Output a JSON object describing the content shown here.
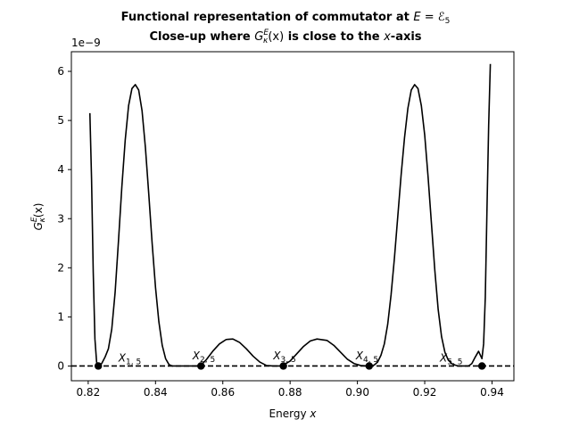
{
  "chart_data": {
    "type": "line",
    "title_line1": {
      "text": "Functional representation of commutator at ",
      "math_base": "E = ℰ",
      "math_sub": "5"
    },
    "title_line2": {
      "pre": "Close-up where ",
      "math_G": "G",
      "math_sub": "κ",
      "math_sup": "E",
      "math_arg": "(x)",
      "mid": " is close to the ",
      "math_x": "x",
      "post": "-axis"
    },
    "xlabel": {
      "text": "Energy ",
      "math": "x"
    },
    "ylabel": {
      "math_G": "G",
      "math_sub": "κ",
      "math_sup": "E",
      "math_arg": "(x)"
    },
    "y_offset_label": "1e−9",
    "xlim": [
      0.815,
      0.9465
    ],
    "ylim": [
      -0.3,
      6.4
    ],
    "y_scale": 1e-09,
    "xticks": [
      0.82,
      0.84,
      0.86,
      0.88,
      0.9,
      0.92,
      0.94
    ],
    "xtick_labels": [
      "0.82",
      "0.84",
      "0.86",
      "0.88",
      "0.90",
      "0.92",
      "0.94"
    ],
    "yticks": [
      0,
      1,
      2,
      3,
      4,
      5,
      6
    ],
    "ytick_labels": [
      "0",
      "1",
      "2",
      "3",
      "4",
      "5",
      "6"
    ],
    "grid": false,
    "series": [
      {
        "color": "#000000",
        "style": "solid",
        "x": [
          0.8205,
          0.821,
          0.8215,
          0.822,
          0.8225,
          0.823,
          0.824,
          0.825,
          0.826,
          0.827,
          0.828,
          0.829,
          0.83,
          0.831,
          0.832,
          0.833,
          0.834,
          0.835,
          0.836,
          0.837,
          0.838,
          0.839,
          0.84,
          0.841,
          0.842,
          0.843,
          0.844,
          0.845,
          0.846,
          0.847,
          0.848,
          0.849,
          0.85,
          0.851,
          0.852,
          0.853,
          0.854,
          0.855,
          0.857,
          0.859,
          0.861,
          0.863,
          0.865,
          0.867,
          0.869,
          0.871,
          0.873,
          0.875,
          0.877,
          0.878,
          0.88,
          0.882,
          0.884,
          0.886,
          0.888,
          0.891,
          0.893,
          0.895,
          0.897,
          0.899,
          0.901,
          0.903,
          0.904,
          0.905,
          0.906,
          0.907,
          0.908,
          0.909,
          0.91,
          0.911,
          0.912,
          0.913,
          0.914,
          0.915,
          0.916,
          0.917,
          0.918,
          0.919,
          0.92,
          0.921,
          0.922,
          0.923,
          0.924,
          0.925,
          0.926,
          0.927,
          0.928,
          0.929,
          0.93,
          0.931,
          0.932,
          0.933,
          0.934,
          0.935,
          0.936,
          0.937,
          0.9375,
          0.938,
          0.9385,
          0.939,
          0.9395
        ],
        "y": [
          5.15,
          3.8,
          1.9,
          0.55,
          0.08,
          0.0,
          0.05,
          0.18,
          0.35,
          0.75,
          1.5,
          2.55,
          3.65,
          4.6,
          5.3,
          5.65,
          5.73,
          5.62,
          5.2,
          4.45,
          3.5,
          2.5,
          1.6,
          0.9,
          0.42,
          0.15,
          0.03,
          0.0,
          0.0,
          0.0,
          0.0,
          0.0,
          0.0,
          0.0,
          0.0,
          0.0,
          0.05,
          0.12,
          0.3,
          0.45,
          0.54,
          0.55,
          0.48,
          0.35,
          0.2,
          0.08,
          0.01,
          0.0,
          0.0,
          0.02,
          0.1,
          0.25,
          0.4,
          0.51,
          0.55,
          0.52,
          0.42,
          0.28,
          0.14,
          0.05,
          0.01,
          0.0,
          0.0,
          0.02,
          0.08,
          0.22,
          0.45,
          0.85,
          1.45,
          2.2,
          3.05,
          3.9,
          4.65,
          5.25,
          5.62,
          5.73,
          5.65,
          5.3,
          4.7,
          3.85,
          2.9,
          1.95,
          1.15,
          0.6,
          0.28,
          0.12,
          0.05,
          0.02,
          0.0,
          0.0,
          0.0,
          0.0,
          0.05,
          0.18,
          0.3,
          0.15,
          0.45,
          1.4,
          3.2,
          4.9,
          6.15
        ]
      },
      {
        "color": "#000000",
        "style": "dashed",
        "x": [
          0.815,
          0.9465
        ],
        "y": [
          0,
          0
        ]
      }
    ],
    "points": [
      {
        "x": 0.823,
        "y": 0
      },
      {
        "x": 0.8535,
        "y": 0
      },
      {
        "x": 0.878,
        "y": 0
      },
      {
        "x": 0.9035,
        "y": 0
      },
      {
        "x": 0.937,
        "y": 0
      }
    ],
    "annotations": [
      {
        "base": "X",
        "sub": "1, 5",
        "x": 0.829,
        "y": 0.09
      },
      {
        "base": "X",
        "sub": "2, 5",
        "x": 0.851,
        "y": 0.14
      },
      {
        "base": "X",
        "sub": "3, 5",
        "x": 0.875,
        "y": 0.14
      },
      {
        "base": "X",
        "sub": "4, 5",
        "x": 0.8995,
        "y": 0.14
      },
      {
        "base": "X",
        "sub": "5, 5",
        "x": 0.9245,
        "y": 0.09
      }
    ]
  }
}
